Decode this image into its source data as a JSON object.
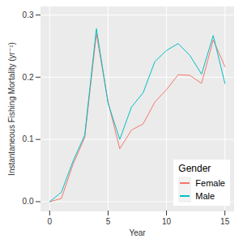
{
  "chart_data": {
    "type": "line",
    "x_label": "Year",
    "y_label": "Instantaneous Fishing Mortality (yr⁻¹)",
    "legend_title": "Gender",
    "legend": "bottom-right",
    "grid": true,
    "x": [
      0,
      1,
      2,
      3,
      4,
      5,
      6,
      7,
      8,
      9,
      10,
      11,
      12,
      13,
      14,
      15
    ],
    "xlim": [
      -0.75,
      15.75
    ],
    "xticks": [
      0,
      5,
      10,
      15
    ],
    "ylim": [
      -0.015,
      0.313
    ],
    "yticks": [
      {
        "value": 0,
        "label": "0.0"
      },
      0.1,
      0.2,
      0.3
    ],
    "series": [
      {
        "name": "Female",
        "color": "#F8766D",
        "values": [
          0.0,
          0.005,
          0.06,
          0.103,
          0.27,
          0.16,
          0.085,
          0.115,
          0.125,
          0.16,
          0.18,
          0.204,
          0.203,
          0.19,
          0.26,
          0.217
        ]
      },
      {
        "name": "Male",
        "color": "#00BFC4",
        "values": [
          0.0,
          0.015,
          0.065,
          0.107,
          0.278,
          0.158,
          0.1,
          0.152,
          0.175,
          0.225,
          0.243,
          0.254,
          0.235,
          0.205,
          0.267,
          0.19
        ]
      }
    ]
  }
}
